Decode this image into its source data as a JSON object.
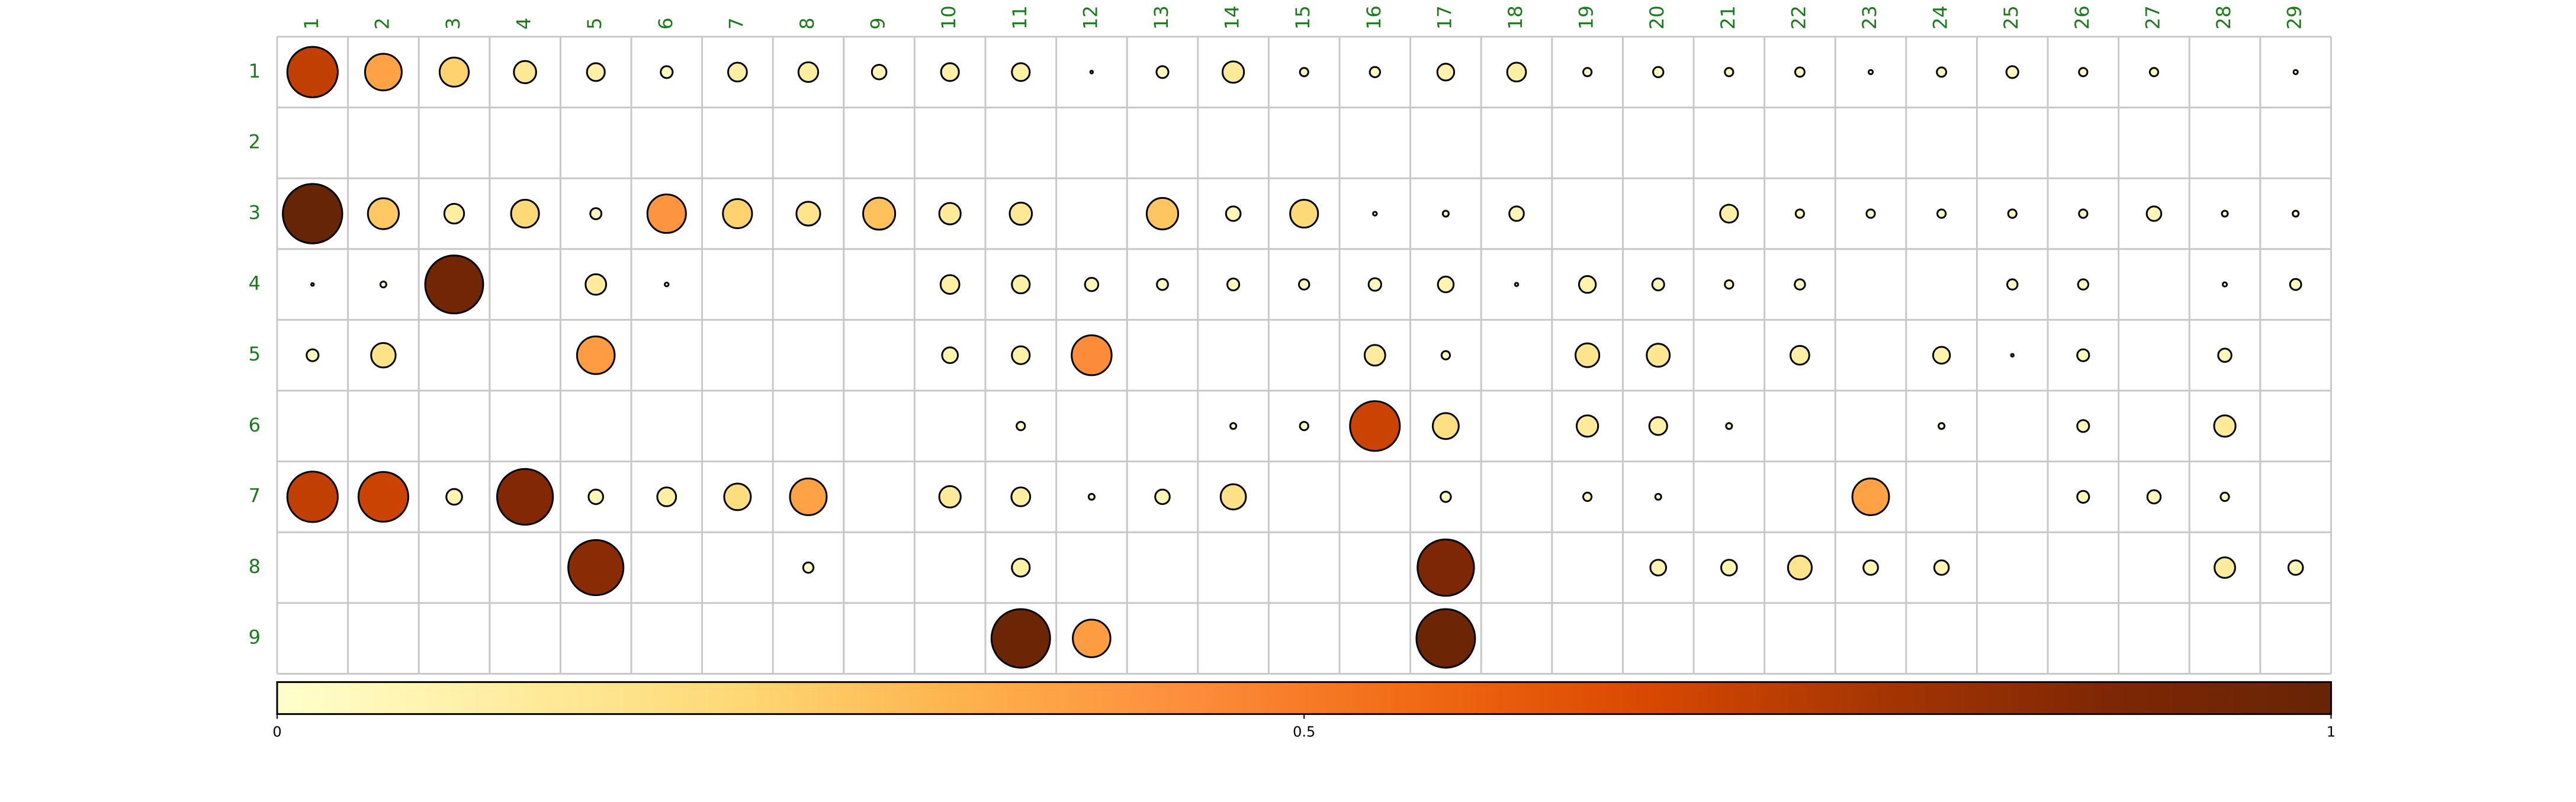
{
  "chart_data": {
    "type": "heatmap",
    "subtype": "balloon-correlation-plot",
    "title": "",
    "xlabel": "",
    "ylabel": "",
    "columns": [
      "1",
      "2",
      "3",
      "4",
      "5",
      "6",
      "7",
      "8",
      "9",
      "10",
      "11",
      "12",
      "13",
      "14",
      "15",
      "16",
      "17",
      "18",
      "19",
      "20",
      "21",
      "22",
      "23",
      "24",
      "25",
      "26",
      "27",
      "28",
      "29"
    ],
    "rows": [
      "1",
      "2",
      "3",
      "4",
      "5",
      "6",
      "7",
      "8",
      "9"
    ],
    "value_range": [
      0,
      1
    ],
    "colorbar": {
      "ticks": [
        0,
        0.5,
        1
      ],
      "tick_labels": [
        "0",
        "0.5",
        "1"
      ],
      "colors": [
        "#ffffcc",
        "#ffeda0",
        "#fed976",
        "#feb24c",
        "#fd8d3c",
        "#f16913",
        "#d94801",
        "#a63603",
        "#7f2704",
        "#662506"
      ]
    },
    "grid": true,
    "values": [
      [
        0.72,
        0.38,
        0.24,
        0.14,
        0.09,
        0.04,
        0.1,
        0.11,
        0.06,
        0.09,
        0.09,
        0.002,
        0.04,
        0.13,
        0.02,
        0.03,
        0.08,
        0.1,
        0.02,
        0.03,
        0.02,
        0.025,
        0.005,
        0.025,
        0.04,
        0.02,
        0.02,
        null,
        0.005
      ],
      [
        null,
        null,
        null,
        null,
        null,
        null,
        null,
        null,
        null,
        null,
        null,
        null,
        null,
        null,
        null,
        null,
        null,
        null,
        null,
        null,
        null,
        null,
        null,
        null,
        null,
        null,
        null,
        null,
        null
      ],
      [
        1.0,
        0.27,
        0.11,
        0.22,
        0.035,
        0.42,
        0.24,
        0.16,
        0.29,
        0.13,
        0.14,
        null,
        0.28,
        0.06,
        0.22,
        0.004,
        0.01,
        0.06,
        null,
        null,
        0.09,
        0.02,
        0.02,
        0.02,
        0.02,
        0.02,
        0.06,
        0.01,
        0.01
      ],
      [
        0.002,
        0.01,
        0.95,
        null,
        0.12,
        0.004,
        null,
        null,
        null,
        0.1,
        0.09,
        0.05,
        0.035,
        0.04,
        0.03,
        0.045,
        0.07,
        0.003,
        0.08,
        0.04,
        0.02,
        0.03,
        null,
        null,
        0.03,
        0.03,
        null,
        0.005,
        0.035
      ],
      [
        0.04,
        0.17,
        null,
        null,
        0.4,
        null,
        null,
        null,
        null,
        0.07,
        0.09,
        0.45,
        null,
        null,
        null,
        0.12,
        0.02,
        null,
        0.16,
        0.15,
        null,
        0.1,
        null,
        0.08,
        0.002,
        0.04,
        null,
        0.05,
        null
      ],
      [
        null,
        null,
        null,
        null,
        null,
        null,
        null,
        null,
        null,
        null,
        0.02,
        null,
        null,
        0.01,
        0.02,
        0.7,
        0.19,
        null,
        0.13,
        0.09,
        0.01,
        null,
        null,
        0.01,
        null,
        0.04,
        null,
        0.13,
        null
      ],
      [
        0.72,
        0.7,
        0.07,
        0.88,
        0.06,
        0.1,
        0.2,
        0.38,
        null,
        0.13,
        0.1,
        0.01,
        0.06,
        0.18,
        null,
        null,
        0.03,
        null,
        0.02,
        0.01,
        null,
        null,
        0.38,
        null,
        null,
        0.04,
        0.05,
        0.02,
        null
      ],
      [
        null,
        null,
        null,
        null,
        0.86,
        null,
        null,
        0.03,
        null,
        null,
        0.09,
        null,
        null,
        null,
        null,
        null,
        0.9,
        null,
        null,
        0.07,
        0.07,
        0.16,
        0.06,
        0.06,
        null,
        null,
        null,
        0.12,
        0.06
      ],
      [
        null,
        null,
        null,
        null,
        null,
        null,
        null,
        null,
        null,
        null,
        0.97,
        0.4,
        null,
        null,
        null,
        null,
        0.97,
        null,
        null,
        null,
        null,
        null,
        null,
        null,
        null,
        null,
        null,
        null,
        null
      ]
    ]
  }
}
